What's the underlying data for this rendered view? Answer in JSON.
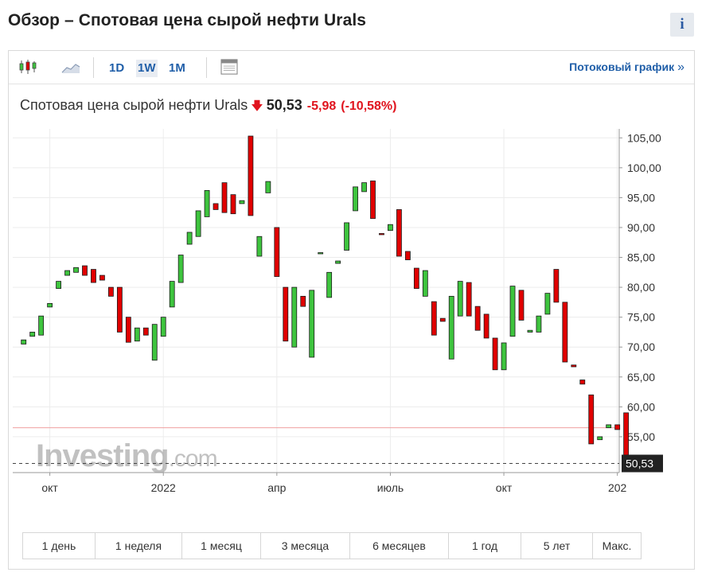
{
  "header": {
    "title": "Обзор – Спотовая цена сырой нефти Urals",
    "info_icon_label": "i"
  },
  "toolbar": {
    "timeframes": [
      "1D",
      "1W",
      "1M"
    ],
    "active_timeframe": "1W",
    "stream_link": "Потоковый график",
    "stream_arrow": "»",
    "icons": [
      "candlestick-icon",
      "area-chart-icon",
      "layout-icon"
    ]
  },
  "quote": {
    "name": "Спотовая цена сырой нефти Urals",
    "direction": "down",
    "price": "50,53",
    "change": "-5,98",
    "change_pct": "(-10,58%)"
  },
  "watermark": {
    "text": "Investing",
    "suffix": ".com"
  },
  "ranges": [
    "1 день",
    "1 неделя",
    "1 месяц",
    "3 месяца",
    "6 месяцев",
    "1 год",
    "5 лет",
    "Макс."
  ],
  "colors": {
    "up": "#3ec43e",
    "down": "#e00000",
    "accent": "#1f5ea8",
    "last_price_bg": "#222222"
  },
  "chart_data": {
    "type": "candlestick",
    "title": "Спотовая цена сырой нефти Urals",
    "ylim": [
      49,
      106.5
    ],
    "yticks": [
      55,
      60,
      65,
      70,
      75,
      80,
      85,
      90,
      95,
      100,
      105
    ],
    "ytick_labels": [
      "55,00",
      "60,00",
      "65,00",
      "70,00",
      "75,00",
      "80,00",
      "85,00",
      "90,00",
      "95,00",
      "100,00",
      "105,00"
    ],
    "xticks": [
      {
        "label": "окт",
        "index": 3
      },
      {
        "label": "2022",
        "index": 16
      },
      {
        "label": "апр",
        "index": 29
      },
      {
        "label": "июль",
        "index": 42
      },
      {
        "label": "окт",
        "index": 55
      },
      {
        "label": "202",
        "index": 68
      }
    ],
    "last_price": 50.53,
    "last_price_label": "50,53",
    "previous_close": 56.51,
    "grid": true,
    "candles": [
      {
        "o": 70.5,
        "c": 71.2
      },
      {
        "o": 71.8,
        "c": 72.5
      },
      {
        "o": 72.0,
        "c": 75.2
      },
      {
        "o": 76.7,
        "c": 77.3
      },
      {
        "o": 79.8,
        "c": 81.0
      },
      {
        "o": 82.0,
        "c": 82.8
      },
      {
        "o": 82.5,
        "c": 83.3
      },
      {
        "o": 83.6,
        "c": 82.0
      },
      {
        "o": 83.0,
        "c": 80.8
      },
      {
        "o": 82.0,
        "c": 81.2
      },
      {
        "o": 80.0,
        "c": 78.5
      },
      {
        "o": 80.0,
        "c": 72.5
      },
      {
        "o": 75.0,
        "c": 70.8
      },
      {
        "o": 71.0,
        "c": 73.2
      },
      {
        "o": 73.2,
        "c": 72.0
      },
      {
        "o": 67.8,
        "c": 73.8
      },
      {
        "o": 71.8,
        "c": 75.0
      },
      {
        "o": 76.7,
        "c": 81.0
      },
      {
        "o": 80.8,
        "c": 85.4
      },
      {
        "o": 87.2,
        "c": 89.2
      },
      {
        "o": 88.5,
        "c": 92.8
      },
      {
        "o": 91.8,
        "c": 96.2
      },
      {
        "o": 94.0,
        "c": 93.0
      },
      {
        "o": 97.5,
        "c": 92.5
      },
      {
        "o": 95.5,
        "c": 92.3
      },
      {
        "o": 94.0,
        "c": 94.5
      },
      {
        "o": 105.3,
        "c": 92.0
      },
      {
        "o": 85.2,
        "c": 88.5
      },
      {
        "o": 95.8,
        "c": 97.7
      },
      {
        "o": 90.0,
        "c": 81.8
      },
      {
        "o": 80.0,
        "c": 71.0
      },
      {
        "o": 70.0,
        "c": 80.0
      },
      {
        "o": 78.5,
        "c": 76.8
      },
      {
        "o": 68.3,
        "c": 79.5
      },
      {
        "o": 85.8,
        "c": 85.8
      },
      {
        "o": 78.3,
        "c": 82.5
      },
      {
        "o": 84.0,
        "c": 84.4
      },
      {
        "o": 86.2,
        "c": 90.8
      },
      {
        "o": 92.8,
        "c": 96.8
      },
      {
        "o": 96.0,
        "c": 97.5
      },
      {
        "o": 97.8,
        "c": 91.5
      },
      {
        "o": 89.0,
        "c": 88.8
      },
      {
        "o": 89.5,
        "c": 90.5
      },
      {
        "o": 93.0,
        "c": 85.2
      },
      {
        "o": 86.0,
        "c": 84.6
      },
      {
        "o": 83.2,
        "c": 79.8
      },
      {
        "o": 78.5,
        "c": 82.8
      },
      {
        "o": 77.6,
        "c": 72.0
      },
      {
        "o": 74.8,
        "c": 74.3
      },
      {
        "o": 68.0,
        "c": 78.5
      },
      {
        "o": 75.2,
        "c": 81.0
      },
      {
        "o": 80.8,
        "c": 75.2
      },
      {
        "o": 76.8,
        "c": 72.8
      },
      {
        "o": 75.5,
        "c": 71.5
      },
      {
        "o": 71.5,
        "c": 66.2
      },
      {
        "o": 66.2,
        "c": 70.7
      },
      {
        "o": 71.8,
        "c": 80.2
      },
      {
        "o": 79.5,
        "c": 74.5
      },
      {
        "o": 72.5,
        "c": 72.8
      },
      {
        "o": 72.5,
        "c": 75.2
      },
      {
        "o": 75.5,
        "c": 79.0
      },
      {
        "o": 83.0,
        "c": 77.5
      },
      {
        "o": 77.5,
        "c": 67.5
      },
      {
        "o": 67.0,
        "c": 66.7
      },
      {
        "o": 64.5,
        "c": 63.8
      },
      {
        "o": 62.0,
        "c": 53.8
      },
      {
        "o": 54.5,
        "c": 55.0
      },
      {
        "o": 56.5,
        "c": 57.0
      },
      {
        "o": 57.0,
        "c": 56.2
      },
      {
        "o": 59.0,
        "c": 50.53
      }
    ]
  }
}
